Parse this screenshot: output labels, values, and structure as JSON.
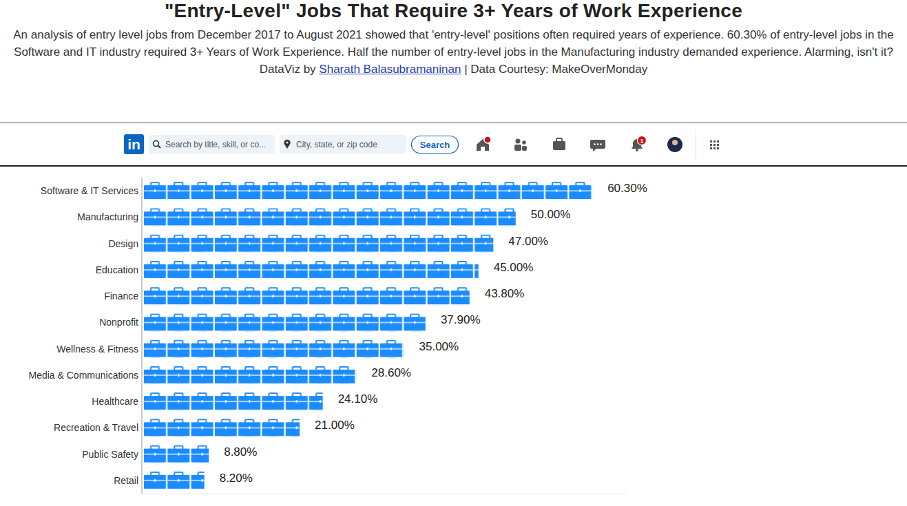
{
  "chart_data": {
    "type": "bar",
    "orientation": "horizontal",
    "title": "\"Entry-Level\" Jobs That Require 3+ Years of Work Experience",
    "subtitle": "An analysis of entry level jobs from December 2017 to August 2021 showed that 'entry-level' positions often required years of experience. 60.30% of entry-level jobs in the Software and IT industry required 3+ Years of Work Experience. Half the number of entry-level jobs in the Manufacturing industry demanded experience. Alarming, isn't it?",
    "credit": {
      "prefix": "DataViz by",
      "author": "Sharath Balasubramaninan",
      "suffix": "| Data Courtesy: MakeOverMonday"
    },
    "categories": [
      "Software & IT Services",
      "Manufacturing",
      "Design",
      "Education",
      "Finance",
      "Nonprofit",
      "Wellness & Fitness",
      "Media & Communications",
      "Healthcare",
      "Recreation & Travel",
      "Public Safety",
      "Retail"
    ],
    "values": [
      60.3,
      50,
      47,
      45,
      43.8,
      37.9,
      35,
      28.6,
      24.1,
      21,
      8.8,
      8.2
    ],
    "value_labels": [
      "60.30%",
      "50.00%",
      "47.00%",
      "45.00%",
      "43.80%",
      "37.90%",
      "35.00%",
      "28.60%",
      "24.10%",
      "21.00%",
      "8.80%",
      "8.20%"
    ],
    "color": "#1a8cff",
    "xlim": [
      0,
      65
    ],
    "xticks": [],
    "tick_labels": "y",
    "data_labels": true,
    "grid": false
  },
  "navbar": {
    "logo": "in",
    "search_placeholder": "Search by title, skill, or co...",
    "location_placeholder": "City, state, or zip code",
    "button": "Search",
    "badge": "1"
  }
}
